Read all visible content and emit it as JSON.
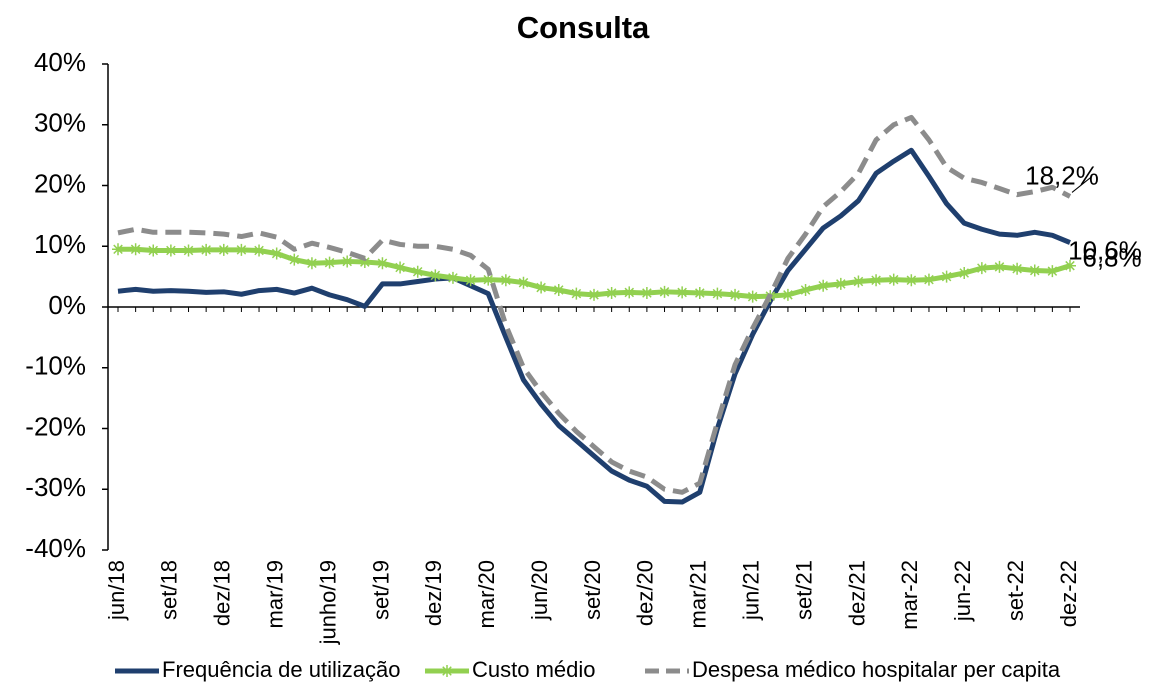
{
  "chart_data": {
    "type": "line",
    "title": "Consulta",
    "categories": [
      "jun/18",
      null,
      null,
      "set/18",
      null,
      null,
      "dez/18",
      null,
      null,
      "mar/19",
      null,
      null,
      "junho/19",
      null,
      null,
      "set/19",
      null,
      null,
      "dez/19",
      null,
      null,
      "mar/20",
      null,
      null,
      "jun/20",
      null,
      null,
      "set/20",
      null,
      null,
      "dez/20",
      null,
      null,
      "mar/21",
      null,
      null,
      "jun/21",
      null,
      null,
      "set/21",
      null,
      null,
      "dez/21",
      null,
      null,
      "mar-22",
      null,
      null,
      "jun-22",
      null,
      null,
      "set-22",
      null,
      null,
      "dez-22"
    ],
    "series": [
      {
        "name": "Frequência de utilização",
        "color": "#1f3f6e",
        "style": "solid",
        "values": [
          2.6,
          2.9,
          2.6,
          2.7,
          2.6,
          2.4,
          2.5,
          2.1,
          2.7,
          2.9,
          2.3,
          3.1,
          2.0,
          1.2,
          0.1,
          3.8,
          3.8,
          4.2,
          4.6,
          4.8,
          3.5,
          2.2,
          -5,
          -12,
          -16,
          -19.5,
          -22,
          -24.5,
          -27,
          -28.5,
          -29.5,
          -32,
          -32.1,
          -30.5,
          -20,
          -11,
          -4.5,
          1,
          6,
          9.5,
          13,
          15,
          17.5,
          22,
          24,
          25.8,
          21.5,
          17,
          13.8,
          12.8,
          12,
          11.8,
          12.3,
          11.8,
          10.6
        ],
        "value_labels": [
          null,
          null,
          null,
          null,
          null,
          null,
          null,
          null,
          null,
          null,
          null,
          null,
          null,
          null,
          null,
          null,
          null,
          null,
          null,
          null,
          null,
          null,
          null,
          null,
          null,
          null,
          null,
          null,
          null,
          null,
          null,
          null,
          null,
          null,
          null,
          null,
          null,
          null,
          null,
          null,
          null,
          null,
          null,
          null,
          null,
          null,
          null,
          null,
          null,
          null,
          null,
          null,
          null,
          null,
          "10,6%"
        ]
      },
      {
        "name": "Custo médio",
        "color": "#92d050",
        "style": "star",
        "values": [
          9.5,
          9.5,
          9.3,
          9.3,
          9.3,
          9.4,
          9.4,
          9.4,
          9.3,
          8.8,
          7.8,
          7.2,
          7.3,
          7.5,
          7.4,
          7.2,
          6.5,
          5.8,
          5.2,
          4.8,
          4.4,
          4.5,
          4.4,
          4.0,
          3.2,
          2.8,
          2.2,
          2.0,
          2.3,
          2.4,
          2.3,
          2.5,
          2.4,
          2.3,
          2.2,
          2.0,
          1.7,
          1.8,
          2.0,
          2.8,
          3.5,
          3.8,
          4.2,
          4.4,
          4.5,
          4.4,
          4.5,
          5.0,
          5.6,
          6.4,
          6.6,
          6.3,
          6.0,
          5.9,
          6.8
        ],
        "value_labels": [
          null,
          null,
          null,
          null,
          null,
          null,
          null,
          null,
          null,
          null,
          null,
          null,
          null,
          null,
          null,
          null,
          null,
          null,
          null,
          null,
          null,
          null,
          null,
          null,
          null,
          null,
          null,
          null,
          null,
          null,
          null,
          null,
          null,
          null,
          null,
          null,
          null,
          null,
          null,
          null,
          null,
          null,
          null,
          null,
          null,
          null,
          null,
          null,
          null,
          null,
          null,
          null,
          null,
          null,
          "6,8%"
        ]
      },
      {
        "name": "Despesa médico hospitalar per capita",
        "color": "#8c8c8c",
        "style": "dashed",
        "values": [
          12.2,
          12.8,
          12.3,
          12.3,
          12.3,
          12.2,
          12.0,
          11.6,
          12.2,
          11.5,
          9.5,
          10.5,
          9.8,
          9.0,
          8.0,
          11.0,
          10.3,
          10.0,
          10.0,
          9.5,
          8.5,
          6.2,
          -3,
          -10,
          -14,
          -17.5,
          -20.5,
          -23,
          -25.5,
          -27,
          -28,
          -30,
          -30.5,
          -29,
          -19,
          -9.5,
          -3.5,
          2,
          8,
          12,
          16.5,
          19,
          22,
          27.5,
          30,
          31.2,
          27.5,
          23,
          21.2,
          20.5,
          19.5,
          18.5,
          19,
          19.7,
          18.2
        ],
        "value_labels": [
          null,
          null,
          null,
          null,
          null,
          null,
          null,
          null,
          null,
          null,
          null,
          null,
          null,
          null,
          null,
          null,
          null,
          null,
          null,
          null,
          null,
          null,
          null,
          null,
          null,
          null,
          null,
          null,
          null,
          null,
          null,
          null,
          null,
          null,
          null,
          null,
          null,
          null,
          null,
          null,
          null,
          null,
          null,
          null,
          null,
          null,
          null,
          null,
          null,
          null,
          null,
          null,
          null,
          null,
          "18,2%"
        ]
      }
    ],
    "ylim": [
      -40,
      40
    ],
    "yticks": [
      {
        "value": -40,
        "label": "-40%"
      },
      {
        "value": -30,
        "label": "-30%"
      },
      {
        "value": -20,
        "label": "-20%"
      },
      {
        "value": -10,
        "label": "-10%"
      },
      {
        "value": 0,
        "label": "0%"
      },
      {
        "value": 10,
        "label": "10%"
      },
      {
        "value": 20,
        "label": "20%"
      },
      {
        "value": 30,
        "label": "30%"
      },
      {
        "value": 40,
        "label": "40%"
      }
    ],
    "grid": false,
    "legend": "bottom"
  }
}
